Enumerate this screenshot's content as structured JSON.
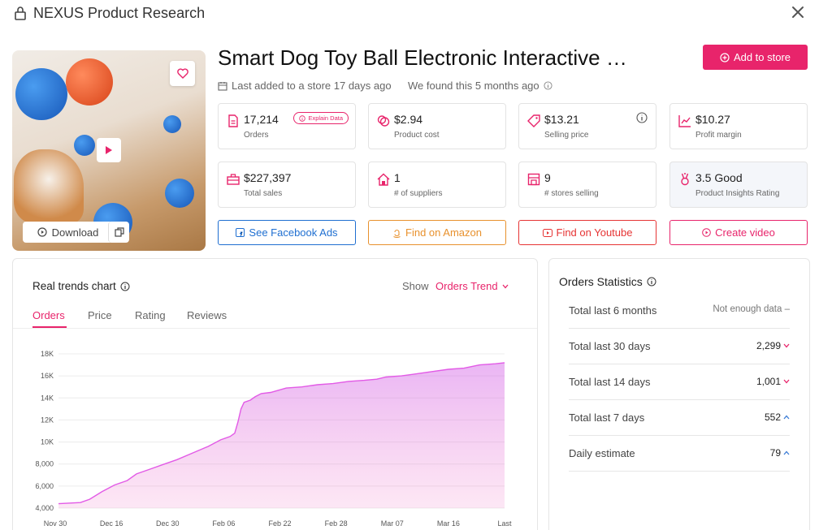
{
  "window": {
    "title": "NEXUS Product Research"
  },
  "product": {
    "title": "Smart Dog Toy Ball Electronic Interactive …",
    "last_added": "Last added to a store 17 days ago",
    "found": "We found this 5 months ago",
    "download_label": "Download",
    "add_to_store_label": "Add to store"
  },
  "metrics": [
    {
      "value": "17,214",
      "label": "Orders",
      "icon": "document-icon"
    },
    {
      "value": "$2.94",
      "label": "Product cost",
      "icon": "coins-icon"
    },
    {
      "value": "$13.21",
      "label": "Selling price",
      "icon": "price-tag-icon"
    },
    {
      "value": "$10.27",
      "label": "Profit margin",
      "icon": "trend-chart-icon"
    },
    {
      "value": "$227,397",
      "label": "Total sales",
      "icon": "briefcase-icon"
    },
    {
      "value": "1",
      "label": "# of suppliers",
      "icon": "home-icon"
    },
    {
      "value": "9",
      "label": "# stores selling",
      "icon": "store-icon"
    },
    {
      "value": "3.5 Good",
      "label": "Product Insights Rating",
      "icon": "award-icon"
    }
  ],
  "explain_label": "Explain Data",
  "actions": [
    {
      "label": "See Facebook Ads",
      "color": "#1f6fd1"
    },
    {
      "label": "Find on Amazon",
      "color": "#e8912d"
    },
    {
      "label": "Find on Youtube",
      "color": "#e63434"
    },
    {
      "label": "Create video",
      "color": "#e8246b"
    }
  ],
  "trends": {
    "title": "Real trends chart",
    "show_label": "Show",
    "selected": "Orders Trend",
    "tabs": [
      "Orders",
      "Price",
      "Rating",
      "Reviews"
    ],
    "active_tab": "Orders"
  },
  "chart_data": {
    "type": "area",
    "x": [
      "Nov 30",
      "Dec 16",
      "Dec 30",
      "Feb 06",
      "Feb 22",
      "Feb 28",
      "Mar 07",
      "Mar 16",
      "Last"
    ],
    "yticks": [
      "4,000",
      "6,000",
      "8,000",
      "10K",
      "12K",
      "14K",
      "16K",
      "18K"
    ],
    "ylim": [
      4000,
      18000
    ],
    "points": [
      [
        0,
        4400
      ],
      [
        0.07,
        4500
      ],
      [
        0.1,
        4800
      ],
      [
        0.14,
        5500
      ],
      [
        0.18,
        6100
      ],
      [
        0.22,
        6500
      ],
      [
        0.25,
        7100
      ],
      [
        0.29,
        7500
      ],
      [
        0.34,
        8000
      ],
      [
        0.38,
        8400
      ],
      [
        0.43,
        9000
      ],
      [
        0.48,
        9600
      ],
      [
        0.52,
        10200
      ],
      [
        0.55,
        10500
      ],
      [
        0.565,
        10800
      ],
      [
        0.575,
        11800
      ],
      [
        0.585,
        13000
      ],
      [
        0.595,
        13600
      ],
      [
        0.615,
        13800
      ],
      [
        0.63,
        14100
      ],
      [
        0.65,
        14400
      ],
      [
        0.68,
        14500
      ],
      [
        0.73,
        14900
      ],
      [
        0.78,
        15000
      ],
      [
        0.83,
        15200
      ],
      [
        0.88,
        15300
      ],
      [
        0.93,
        15500
      ],
      [
        0.98,
        15600
      ],
      [
        1.02,
        15700
      ],
      [
        1.05,
        15900
      ],
      [
        1.1,
        16000
      ],
      [
        1.15,
        16200
      ],
      [
        1.2,
        16400
      ],
      [
        1.25,
        16600
      ],
      [
        1.3,
        16700
      ],
      [
        1.35,
        17000
      ],
      [
        1.4,
        17100
      ],
      [
        1.43,
        17200
      ]
    ],
    "color": "#e25ae6"
  },
  "stats": {
    "title": "Orders Statistics",
    "rows": [
      {
        "label": "Total last 6 months",
        "value": "Not enough data",
        "suffix": "–",
        "dir": "none"
      },
      {
        "label": "Total last 30 days",
        "value": "2,299",
        "suffix": "",
        "dir": "down"
      },
      {
        "label": "Total last 14 days",
        "value": "1,001",
        "suffix": "",
        "dir": "down"
      },
      {
        "label": "Total last 7 days",
        "value": "552",
        "suffix": "",
        "dir": "up"
      },
      {
        "label": "Daily estimate",
        "value": "79",
        "suffix": "",
        "dir": "up"
      }
    ]
  },
  "colors": {
    "accent": "#e8246b",
    "facebook": "#1f6fd1",
    "amazon": "#e8912d",
    "youtube": "#e63434"
  }
}
